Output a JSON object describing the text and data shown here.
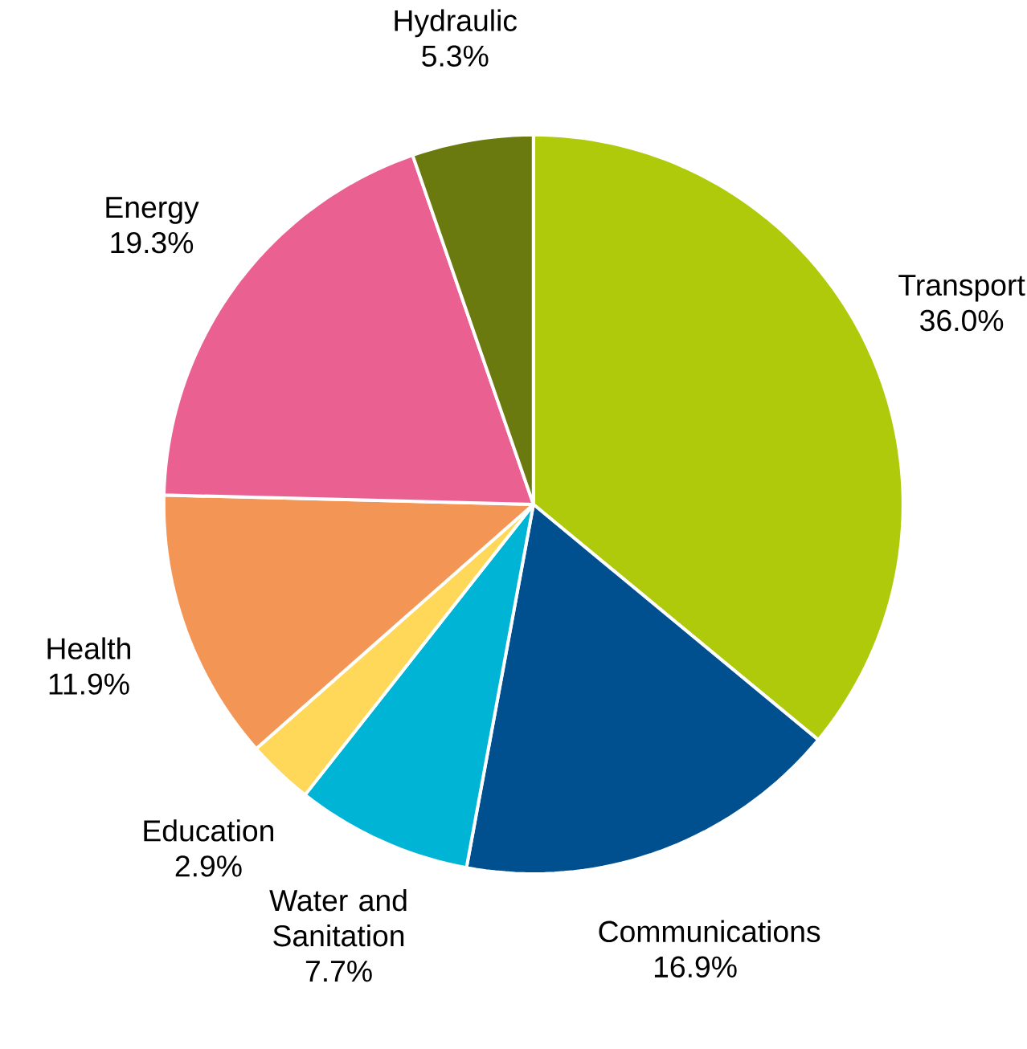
{
  "chart_data": {
    "type": "pie",
    "categories": [
      "Transport",
      "Communications",
      "Water and Sanitation",
      "Education",
      "Health",
      "Energy",
      "Hydraulic"
    ],
    "values": [
      36.0,
      16.9,
      7.7,
      2.9,
      11.9,
      19.3,
      5.3
    ],
    "value_labels": [
      "36.0%",
      "16.9%",
      "7.7%",
      "2.9%",
      "11.9%",
      "19.3%",
      "5.3%"
    ],
    "colors": [
      "#afca0b",
      "#004f8f",
      "#00b4d6",
      "#ffd85a",
      "#f39655",
      "#ea6090",
      "#6b7a0f"
    ]
  }
}
